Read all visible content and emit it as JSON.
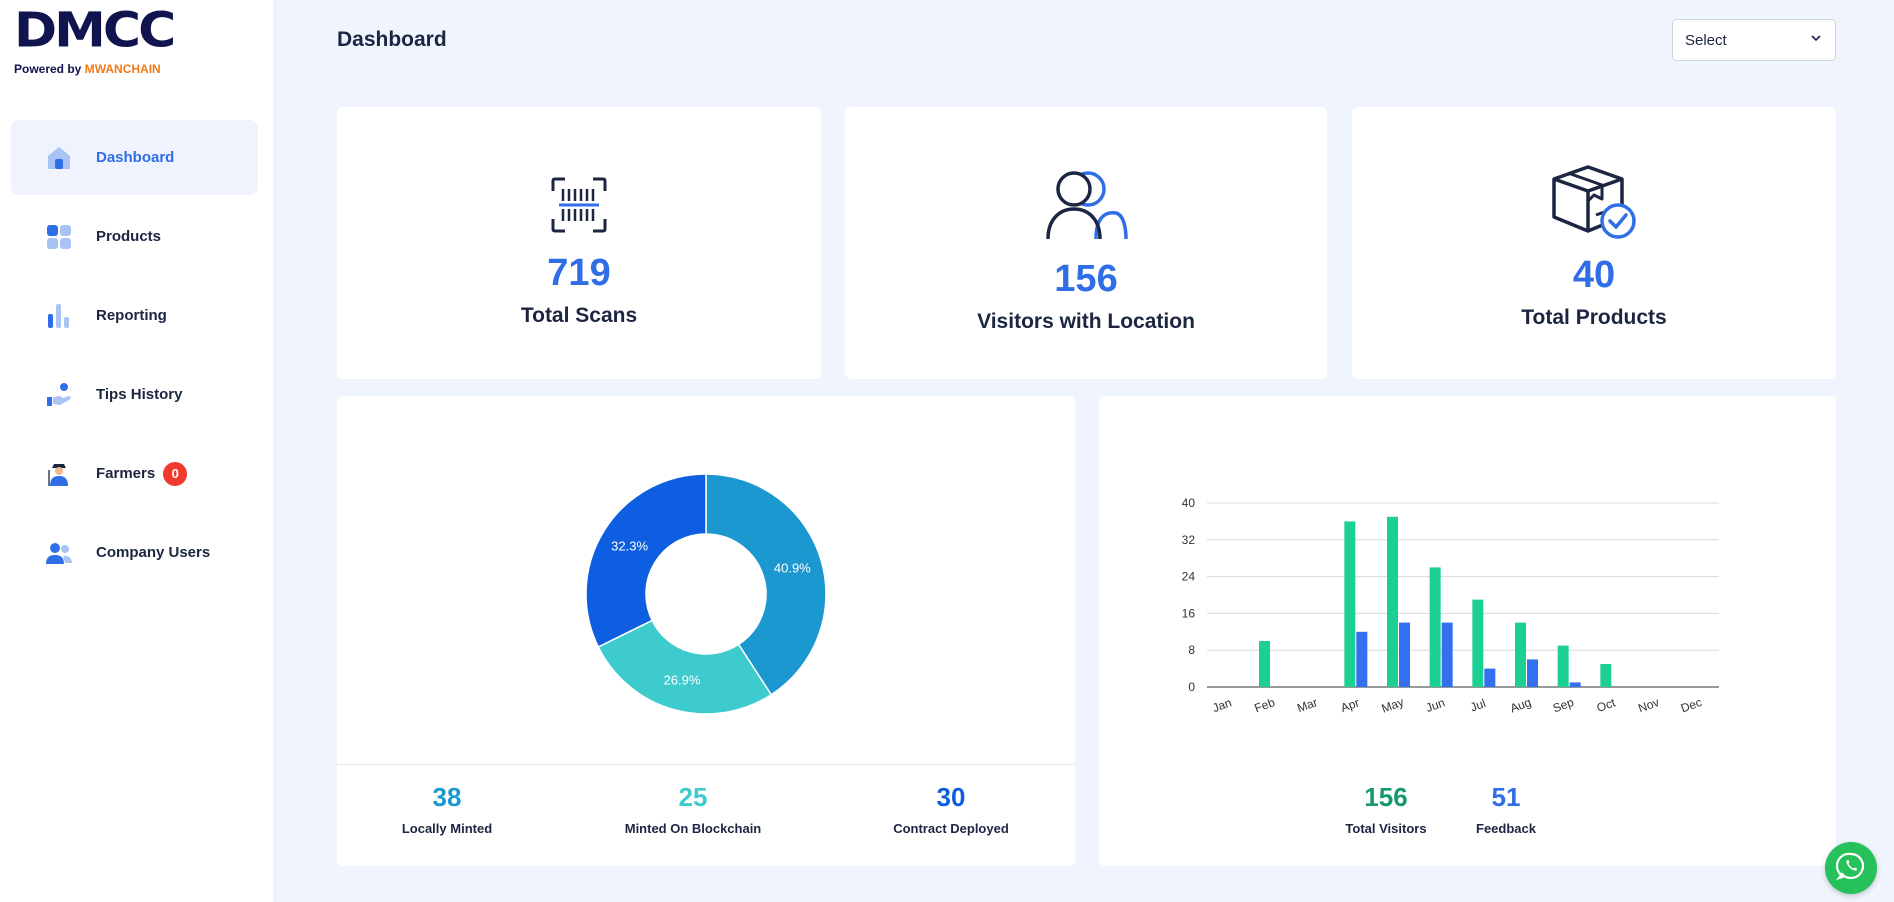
{
  "brand": {
    "logo_text": "DMCC",
    "powered_by": "Powered by",
    "powered_brand": "MWANCHAIN"
  },
  "sidebar": {
    "items": [
      {
        "label": "Dashboard",
        "icon": "home-icon"
      },
      {
        "label": "Products",
        "icon": "grid-icon"
      },
      {
        "label": "Reporting",
        "icon": "bar-chart-icon"
      },
      {
        "label": "Tips History",
        "icon": "hand-coin-icon"
      },
      {
        "label": "Farmers",
        "icon": "farmer-icon",
        "badge": "0"
      },
      {
        "label": "Company Users",
        "icon": "users-icon"
      }
    ]
  },
  "header": {
    "title": "Dashboard",
    "select_label": "Select"
  },
  "stats": [
    {
      "value": "719",
      "label": "Total Scans",
      "icon": "barcode-scan-icon"
    },
    {
      "value": "156",
      "label": "Visitors with Location",
      "icon": "users-outline-icon"
    },
    {
      "value": "40",
      "label": "Total Products",
      "icon": "box-check-icon"
    }
  ],
  "donut": {
    "metrics": [
      {
        "value": "38",
        "label": "Locally Minted",
        "color": "#1b98d0"
      },
      {
        "value": "25",
        "label": "Minted On Blockchain",
        "color": "#3ecbcd"
      },
      {
        "value": "30",
        "label": "Contract Deployed",
        "color": "#0d5ee0"
      }
    ]
  },
  "bar_metrics": [
    {
      "value": "156",
      "label": "Total Visitors",
      "color": "#159a6e"
    },
    {
      "value": "51",
      "label": "Feedback",
      "color": "#2f6ee6"
    }
  ],
  "chart_data": [
    {
      "type": "pie",
      "labels": [
        "Locally Minted",
        "Minted On Blockchain",
        "Contract Deployed"
      ],
      "values": [
        40.9,
        26.9,
        32.3
      ],
      "value_labels": [
        "40.9%",
        "26.9%",
        "32.3%"
      ],
      "colors": [
        "#1b98d0",
        "#3ecbcd",
        "#0d5ee0"
      ],
      "donut": true
    },
    {
      "type": "bar",
      "categories": [
        "Jan",
        "Feb",
        "Mar",
        "Apr",
        "May",
        "Jun",
        "Jul",
        "Aug",
        "Sep",
        "Oct",
        "Nov",
        "Dec"
      ],
      "series": [
        {
          "values": [
            0,
            10,
            0,
            36,
            37,
            26,
            19,
            14,
            9,
            5,
            0,
            0
          ],
          "color": "#1ccf92"
        },
        {
          "values": [
            0,
            0,
            0,
            12,
            14,
            14,
            4,
            6,
            1,
            0,
            0,
            0
          ],
          "color": "#3370ee"
        }
      ],
      "yticks": [
        "0",
        "8",
        "16",
        "24",
        "32",
        "40"
      ],
      "ylim": [
        0,
        40
      ],
      "grid": true
    }
  ]
}
